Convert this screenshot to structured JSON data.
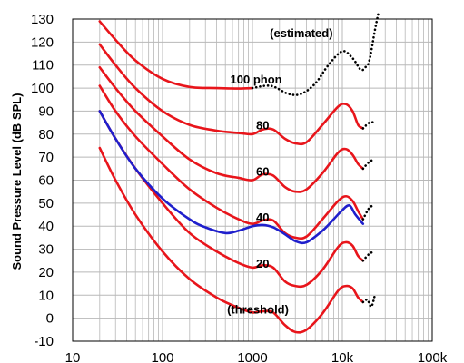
{
  "chart_data": {
    "type": "line",
    "x_scale": "log",
    "xlim": [
      10,
      100000
    ],
    "ylim": [
      -10,
      130
    ],
    "grid": true,
    "ylabel": "Sound Pressure Level (dB SPL)",
    "xlabel": "",
    "x_tick_labels": [
      {
        "value": 10,
        "label": "10"
      },
      {
        "value": 100,
        "label": "100"
      },
      {
        "value": 1000,
        "label": "1000"
      },
      {
        "value": 10000,
        "label": "10k"
      },
      {
        "value": 100000,
        "label": "100k"
      }
    ],
    "y_ticks": [
      -10,
      0,
      10,
      20,
      30,
      40,
      50,
      60,
      70,
      80,
      90,
      100,
      110,
      120,
      130
    ],
    "annotations": [
      {
        "text": "(estimated)",
        "x": 3500,
        "y": 124
      },
      {
        "text": "100 phon",
        "x": 1100,
        "y": 104
      },
      {
        "text": "80",
        "x": 1300,
        "y": 84
      },
      {
        "text": "60",
        "x": 1300,
        "y": 64
      },
      {
        "text": "40",
        "x": 1300,
        "y": 44
      },
      {
        "text": "20",
        "x": 1300,
        "y": 24
      },
      {
        "text": "(threshold)",
        "x": 1150,
        "y": 4
      }
    ],
    "series": [
      {
        "color": "#e8151b",
        "style": "solid",
        "x": [
          20,
          30,
          50,
          100,
          200,
          400,
          700,
          1000
        ],
        "y": [
          129,
          121,
          112,
          104,
          100.5,
          100,
          99.8,
          100
        ]
      },
      {
        "color": "#000000",
        "style": "dotted",
        "x": [
          1000,
          1600,
          2500,
          3500,
          5000,
          7000,
          10000,
          13000,
          16000,
          18000,
          20000,
          23000,
          25000
        ],
        "y": [
          100,
          101,
          97.5,
          97.5,
          102,
          110,
          116,
          113,
          108,
          109,
          112,
          125,
          132
        ]
      },
      {
        "color": "#e8151b",
        "style": "solid",
        "x": [
          20,
          30,
          50,
          100,
          200,
          400,
          700,
          1000,
          1300,
          1700,
          2300,
          3000,
          4000,
          6000,
          9000,
          11000,
          13000,
          15000,
          17000
        ],
        "y": [
          119,
          110,
          100,
          90,
          84,
          81.5,
          80.5,
          80,
          82,
          82,
          78,
          76,
          76.5,
          84,
          92,
          93,
          90,
          84,
          82.5
        ]
      },
      {
        "color": "#000000",
        "style": "dotted",
        "x": [
          17000,
          20000,
          23000
        ],
        "y": [
          82.5,
          85,
          85
        ]
      },
      {
        "color": "#e8151b",
        "style": "solid",
        "x": [
          20,
          30,
          50,
          100,
          200,
          400,
          700,
          1000,
          1300,
          1700,
          2300,
          3000,
          4000,
          6000,
          9000,
          11000,
          13000,
          15000,
          17000
        ],
        "y": [
          109,
          100,
          90,
          79,
          69,
          63,
          61,
          60,
          62.5,
          62,
          57,
          55,
          56,
          63,
          72,
          73.5,
          71,
          67,
          65
        ]
      },
      {
        "color": "#000000",
        "style": "dotted",
        "x": [
          17000,
          20000,
          23000
        ],
        "y": [
          65,
          68,
          69
        ]
      },
      {
        "color": "#e8151b",
        "style": "solid",
        "x": [
          20,
          30,
          50,
          100,
          200,
          400,
          700,
          1000,
          1300,
          1700,
          2300,
          3000,
          4000,
          6000,
          9000,
          11000,
          13000,
          15000,
          17000
        ],
        "y": [
          101,
          90,
          79,
          67,
          56,
          48,
          43,
          41,
          42.5,
          42.5,
          37,
          35,
          35.5,
          43,
          51,
          53,
          51,
          46.5,
          43
        ]
      },
      {
        "color": "#000000",
        "style": "dotted",
        "x": [
          17000,
          20000,
          23000
        ],
        "y": [
          43,
          48,
          49
        ]
      },
      {
        "color": "#e8151b",
        "style": "solid",
        "x": [
          20,
          30,
          50,
          100,
          200,
          400,
          700,
          1000,
          1300,
          1700,
          2300,
          3000,
          4000,
          6000,
          9000,
          11000,
          13000,
          15000,
          17000
        ],
        "y": [
          90,
          78,
          65,
          50,
          37,
          29,
          24,
          22,
          23,
          22,
          16,
          14,
          14.5,
          21,
          31,
          33,
          31.5,
          27,
          25
        ]
      },
      {
        "color": "#000000",
        "style": "dotted",
        "x": [
          17000,
          20000,
          23000
        ],
        "y": [
          25,
          28,
          29
        ]
      },
      {
        "color": "#e8151b",
        "style": "solid",
        "x": [
          20,
          30,
          50,
          100,
          200,
          400,
          700,
          1000,
          1300,
          1700,
          2300,
          3000,
          4000,
          6000,
          9000,
          11000,
          13000,
          15000,
          17000
        ],
        "y": [
          74,
          60,
          45,
          29,
          17,
          9,
          4.5,
          2.5,
          3,
          2.5,
          -3,
          -6,
          -5,
          2,
          12,
          14,
          13,
          9,
          7
        ]
      },
      {
        "color": "#000000",
        "style": "dotted",
        "x": [
          17000,
          19000,
          21000,
          23000
        ],
        "y": [
          7,
          8,
          5,
          10
        ]
      },
      {
        "color": "#1f1fcc",
        "style": "solid",
        "x": [
          20,
          30,
          50,
          100,
          200,
          300,
          500,
          700,
          1000,
          1300,
          1700,
          2300,
          3000,
          4000,
          6000,
          8000,
          10000,
          12000,
          14000,
          17000
        ],
        "y": [
          90,
          78,
          65,
          52,
          43,
          39.5,
          37,
          38,
          40,
          40.5,
          39.5,
          36.5,
          33.5,
          33,
          38,
          43,
          47,
          49,
          45,
          41
        ]
      }
    ]
  }
}
